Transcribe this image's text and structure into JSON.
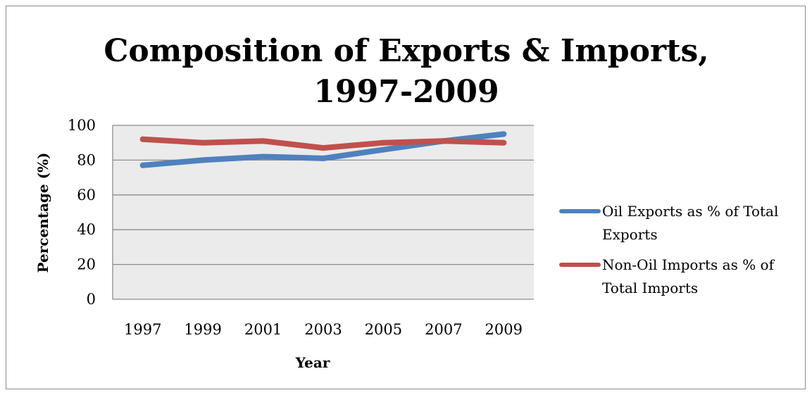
{
  "chart_data": {
    "type": "line",
    "title_lines": [
      "Composition of Exports & Imports,",
      "1997-2009"
    ],
    "xlabel": "Year",
    "ylabel": "Percentage (%)",
    "categories": [
      "1997",
      "1999",
      "2001",
      "2003",
      "2005",
      "2007",
      "2009"
    ],
    "ylim": [
      0,
      100
    ],
    "yticks": [
      0,
      20,
      40,
      60,
      80,
      100
    ],
    "grid": true,
    "legend_position": "right",
    "series": [
      {
        "name_lines": [
          "Oil Exports as % of Total",
          "Exports"
        ],
        "color": "#4f81bd",
        "values": [
          77,
          80,
          82,
          81,
          86,
          91,
          95
        ]
      },
      {
        "name_lines": [
          "Non-Oil Imports as % of",
          "Total Imports"
        ],
        "color": "#c0504d",
        "values": [
          92,
          90,
          91,
          87,
          90,
          91,
          90
        ]
      }
    ],
    "plot_background": "#ebebeb",
    "gridline_color": "#8c8c8c"
  }
}
